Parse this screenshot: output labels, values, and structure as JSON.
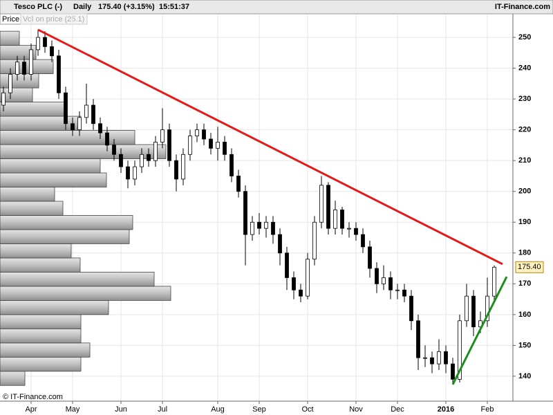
{
  "header": {
    "symbol": "Tesco PLC (-)",
    "period": "Daily",
    "quote": "175.40 (+3.15%)",
    "time": "15:51:37",
    "brand": "IT-Finance.com"
  },
  "tabs": [
    "Price",
    "Vol on price (25.1)"
  ],
  "footer": "© IT-Finance.com",
  "chart_data": {
    "type": "candlestick",
    "categories": [
      null,
      null,
      null,
      null,
      "Apr",
      null,
      null,
      null,
      null,
      null,
      "May",
      null,
      null,
      null,
      null,
      null,
      null,
      "Jun",
      null,
      null,
      null,
      null,
      null,
      "Jul",
      null,
      null,
      null,
      null,
      null,
      null,
      null,
      "Aug",
      null,
      null,
      null,
      null,
      null,
      "Sep",
      null,
      null,
      null,
      null,
      null,
      null,
      "Oct",
      null,
      null,
      null,
      null,
      null,
      null,
      "Nov",
      null,
      null,
      null,
      null,
      null,
      "Dec",
      null,
      null,
      null,
      null,
      null,
      null,
      "2016",
      null,
      null,
      null,
      null,
      null,
      "Feb",
      null
    ],
    "open": [
      228,
      232,
      238,
      242,
      238,
      246,
      250,
      247,
      244,
      232,
      222,
      220,
      224,
      228,
      222,
      219,
      215,
      212,
      208,
      204,
      208,
      212,
      210,
      216,
      220,
      210,
      204,
      212,
      218,
      220,
      217,
      214,
      216,
      212,
      205,
      200,
      186,
      190,
      188,
      190,
      186,
      180,
      172,
      168,
      166,
      178,
      190,
      202,
      188,
      194,
      188,
      188,
      186,
      182,
      175,
      170,
      172,
      168,
      168,
      166,
      158,
      146,
      146,
      144,
      148,
      144,
      139,
      158,
      166,
      156,
      158,
      166
    ],
    "high": [
      234,
      240,
      244,
      244,
      248,
      252.5,
      252,
      249,
      246,
      234,
      224,
      226,
      235,
      230,
      224,
      221,
      217,
      214,
      210,
      210,
      214,
      214,
      218,
      227,
      222,
      212,
      214,
      220,
      222,
      222,
      219,
      221,
      218,
      214,
      207,
      202,
      192,
      193,
      192,
      192,
      188,
      182,
      174,
      170,
      180,
      192,
      205,
      203,
      197,
      195,
      190,
      190,
      188,
      184,
      177,
      176,
      174,
      170,
      170,
      168,
      160,
      150,
      148,
      152,
      150,
      146,
      160,
      170,
      168,
      161,
      172,
      176
    ],
    "low": [
      226,
      230,
      236,
      236,
      236,
      244,
      245,
      242,
      230,
      220,
      218,
      218,
      222,
      220,
      217,
      213,
      210,
      206,
      201,
      202,
      206,
      208,
      208,
      214,
      208,
      200,
      202,
      210,
      216,
      215,
      212,
      210,
      210,
      203,
      198,
      176,
      184,
      186,
      185,
      183,
      176,
      168,
      165,
      164,
      165,
      176,
      188,
      186,
      186,
      186,
      185,
      184,
      180,
      172,
      167,
      168,
      165,
      165,
      164,
      155,
      142,
      143,
      141,
      142,
      141,
      137.5,
      138,
      156,
      153,
      154,
      156,
      164
    ],
    "close": [
      232,
      238,
      242,
      238,
      246,
      250,
      247,
      244,
      232,
      222,
      220,
      224,
      228,
      222,
      219,
      215,
      212,
      208,
      204,
      208,
      212,
      210,
      216,
      220,
      210,
      204,
      212,
      218,
      220,
      217,
      214,
      216,
      212,
      205,
      200,
      186,
      190,
      188,
      190,
      186,
      180,
      172,
      168,
      166,
      178,
      190,
      202,
      188,
      194,
      188,
      188,
      186,
      182,
      175,
      170,
      172,
      168,
      168,
      166,
      158,
      146,
      146,
      144,
      148,
      144,
      139,
      158,
      166,
      156,
      158,
      166,
      175.4
    ],
    "last_label": "175.40",
    "up_color": "#ffffff",
    "down_color": "#000000",
    "ylim": [
      131.9,
      257.2
    ],
    "yticks": [
      140,
      150,
      160,
      170,
      180,
      190,
      200,
      210,
      220,
      230,
      240,
      250
    ],
    "grid": true,
    "volume_profile": {
      "bins": [
        137.0,
        141.6,
        146.2,
        150.8,
        155.4,
        160.0,
        164.6,
        169.2,
        173.8,
        178.4,
        183.0,
        187.6,
        192.2,
        196.8,
        201.4,
        206.0,
        210.6,
        215.2,
        219.8,
        224.4,
        229.0,
        233.6,
        238.2,
        242.8,
        247.4,
        252.0
      ],
      "values": [
        36,
        117,
        130,
        117,
        117,
        157,
        247,
        223,
        116,
        103,
        187,
        192,
        91,
        79,
        154,
        145,
        240,
        195,
        117,
        93,
        47,
        56,
        77,
        52,
        28
      ],
      "xlim": [
        0,
        742
      ],
      "color": "#b8b8b8"
    },
    "trendlines": [
      {
        "color": "#e41a1a",
        "x": [
          5,
          72.2
        ],
        "y": [
          252.5,
          176.4
        ]
      },
      {
        "color": "#1e8c1e",
        "x": [
          65,
          72.8
        ],
        "y": [
          137.3,
          172.3
        ]
      }
    ]
  }
}
